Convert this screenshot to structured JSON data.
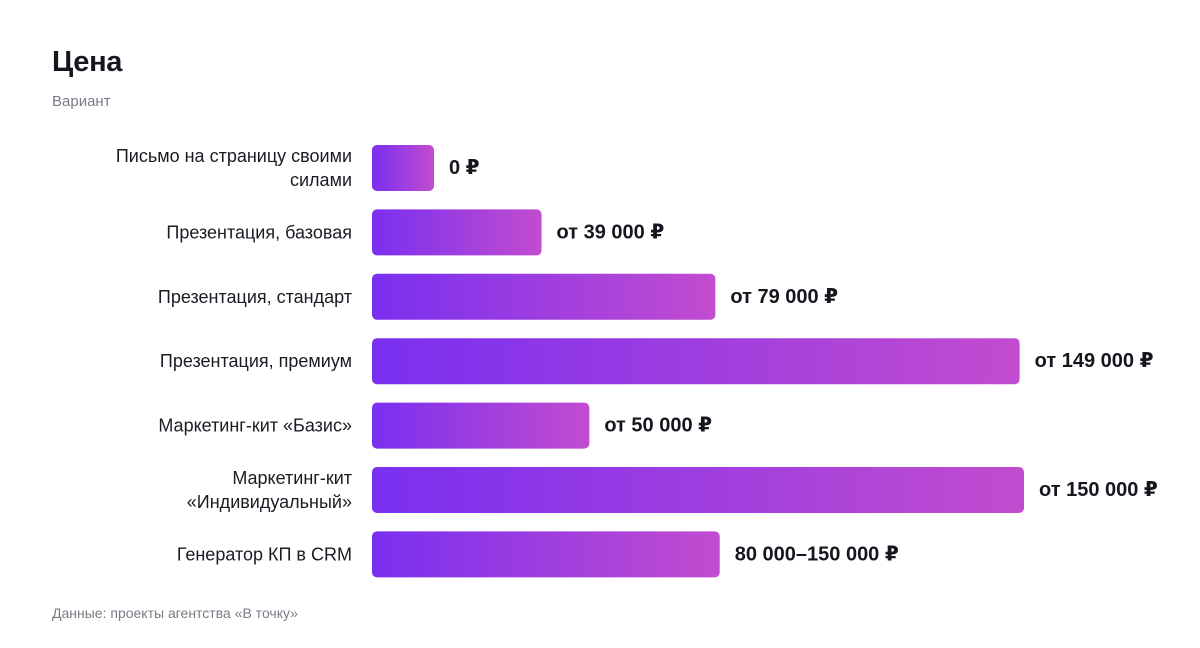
{
  "header": {
    "title": "Цена",
    "subtitle": "Вариант"
  },
  "footer": {
    "source": "Данные: проекты агентства «В точку»"
  },
  "colors": {
    "bar_gradient_start": "#7a2ff0",
    "bar_gradient_end": "#c24ccf"
  },
  "chart_data": {
    "type": "bar",
    "orientation": "horizontal",
    "title": "Цена",
    "subtitle": "Вариант",
    "categories": [
      [
        "Письмо на страницу своими",
        "силами"
      ],
      [
        "Презентация, базовая"
      ],
      [
        "Презентация, стандарт"
      ],
      [
        "Презентация, премиум"
      ],
      [
        "Маркетинг-кит «Базис»"
      ],
      [
        "Маркетинг-кит",
        "«Индивидуальный»"
      ],
      [
        "Генератор КП в CRM"
      ]
    ],
    "values": [
      0,
      39000,
      79000,
      149000,
      50000,
      150000,
      80000
    ],
    "value_labels": [
      "0 ₽",
      "от 39 000 ₽",
      "от 79 000 ₽",
      "от 149 000 ₽",
      "от 50 000 ₽",
      "от 150 000 ₽",
      "80 000–150 000 ₽"
    ],
    "xlim": [
      0,
      150000
    ],
    "grid": false,
    "legend": "none"
  }
}
